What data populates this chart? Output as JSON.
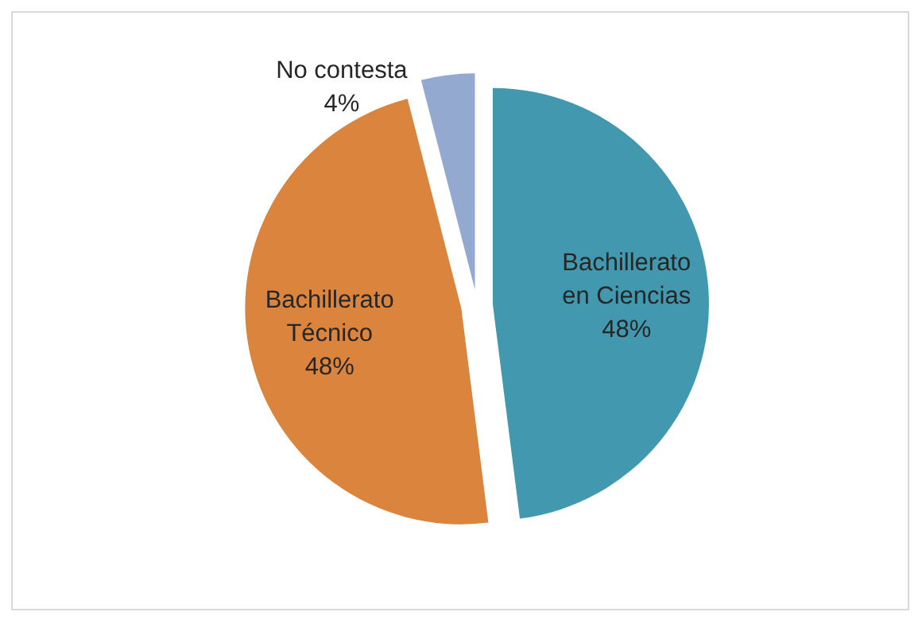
{
  "chart_data": {
    "type": "pie",
    "categories": [
      "Bachillerato en Ciencias",
      "Bachillerato Técnico",
      "No contesta"
    ],
    "values": [
      48,
      48,
      4
    ],
    "colors": [
      "#4198af",
      "#db843d",
      "#93a9cf"
    ],
    "value_labels": [
      "48%",
      "48%",
      "4%"
    ],
    "legend": false
  }
}
